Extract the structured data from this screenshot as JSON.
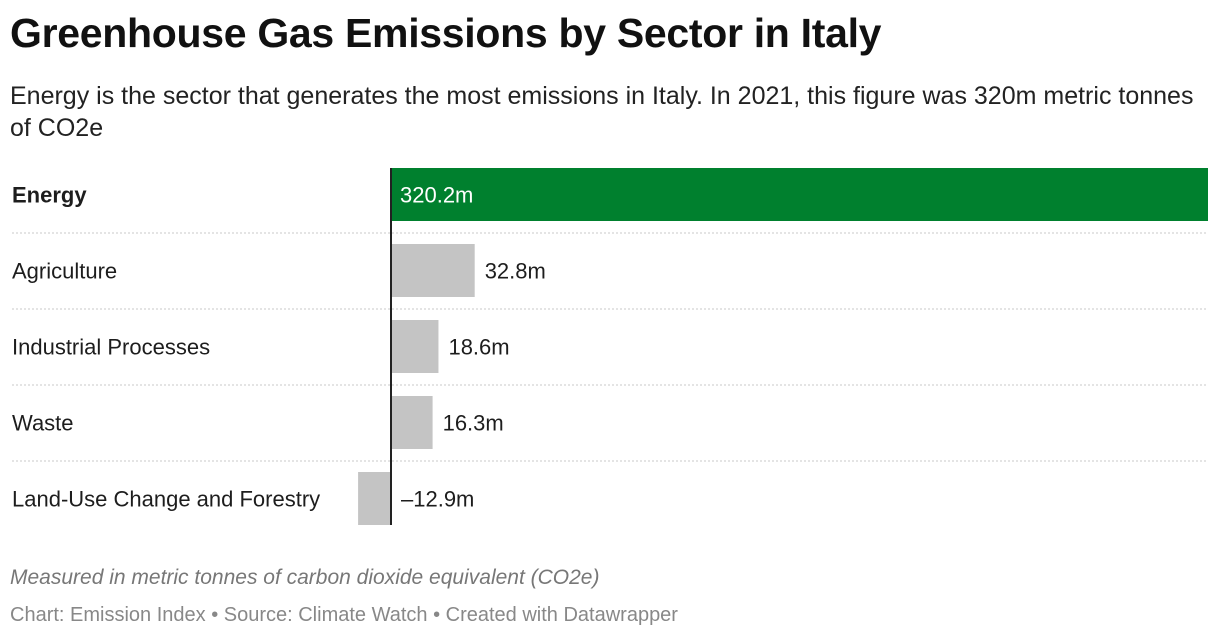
{
  "header": {
    "title": "Greenhouse Gas Emissions by Sector in Italy",
    "subtitle": "Energy is the sector that generates the most emissions in Italy. In 2021, this figure was 320m metric tonnes of CO2e"
  },
  "chart_data": {
    "type": "bar",
    "orientation": "horizontal",
    "categories": [
      "Energy",
      "Agriculture",
      "Industrial Processes",
      "Waste",
      "Land-Use Change and Forestry"
    ],
    "values": [
      320.2,
      32.8,
      18.6,
      16.3,
      -12.9
    ],
    "value_labels": [
      "320.2m",
      "32.8m",
      "18.6m",
      "16.3m",
      "–12.9m"
    ],
    "highlight_category": "Energy",
    "colors": {
      "highlight": "#00802e",
      "default": "#c4c4c4",
      "zero_line": "#222222",
      "separator": "#c8c8c8"
    },
    "xlim": [
      -12.9,
      320.2
    ],
    "grid": false
  },
  "footer": {
    "notes": "Measured in metric tonnes of carbon dioxide equivalent (CO2e)",
    "credit": "Chart: Emission Index • Source: Climate Watch • Created with Datawrapper"
  }
}
